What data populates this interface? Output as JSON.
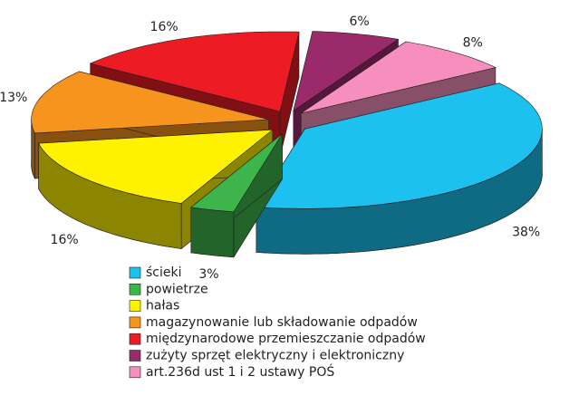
{
  "chart_data": {
    "type": "pie3d",
    "categories": [
      "ścieki",
      "powietrze",
      "hałas",
      "magazynowanie lub składowanie odpadów",
      "międzynarodowe przemieszczanie odpadów",
      "zużyty sprzęt elektryczny i elektroniczny",
      "art.236d ust 1 i 2 ustawy POŚ"
    ],
    "values": [
      38,
      3,
      16,
      13,
      16,
      6,
      8
    ],
    "value_labels": [
      "38%",
      "3%",
      "16%",
      "13%",
      "16%",
      "6%",
      "8%"
    ],
    "colors": [
      "#1cc1f0",
      "#3db54a",
      "#fff200",
      "#f7941d",
      "#ed1c24",
      "#9b2a6b",
      "#f68fbd"
    ]
  }
}
